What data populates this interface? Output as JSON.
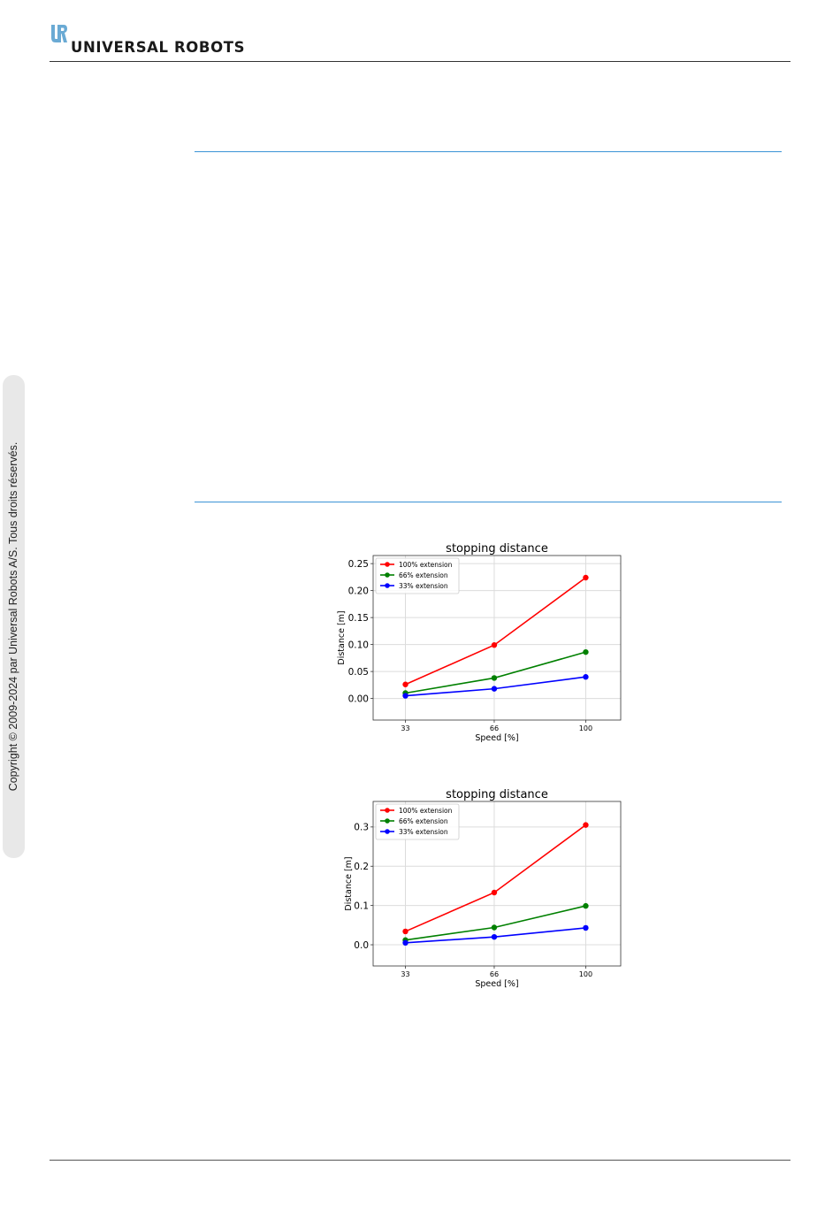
{
  "header": {
    "brand": "UNIVERSAL ROBOTS",
    "logo_icon": "ur-logo-icon",
    "brand_color": "#6aaad4"
  },
  "sidebar": {
    "copyright": "Copyright © 2009-2024 par Universal Robots A/S. Tous droits réservés."
  },
  "chart_data": [
    {
      "type": "line",
      "title": "stopping distance",
      "xlabel": "Speed [%]",
      "ylabel": "Distance [m]",
      "x": [
        33,
        66,
        100
      ],
      "x_ticks": [
        "33",
        "66",
        "100"
      ],
      "y_ticks": [
        "0.00",
        "0.05",
        "0.10",
        "0.15",
        "0.20",
        "0.25"
      ],
      "y_tick_values": [
        0,
        0.05,
        0.1,
        0.15,
        0.2,
        0.25
      ],
      "ylim": [
        -0.04,
        0.265
      ],
      "xlim": [
        21,
        113
      ],
      "grid": true,
      "legend": "top-left",
      "series": [
        {
          "name": "100% extension",
          "color": "#ff0000",
          "values": [
            0.026,
            0.099,
            0.224
          ]
        },
        {
          "name": "66% extension",
          "color": "#008000",
          "values": [
            0.01,
            0.038,
            0.086
          ]
        },
        {
          "name": "33% extension",
          "color": "#0000ff",
          "values": [
            0.005,
            0.018,
            0.04
          ]
        }
      ]
    },
    {
      "type": "line",
      "title": "stopping distance",
      "xlabel": "Speed [%]",
      "ylabel": "Distance [m]",
      "x": [
        33,
        66,
        100
      ],
      "x_ticks": [
        "33",
        "66",
        "100"
      ],
      "y_ticks": [
        "0.0",
        "0.1",
        "0.2",
        "0.3"
      ],
      "y_tick_values": [
        0,
        0.1,
        0.2,
        0.3
      ],
      "ylim": [
        -0.054,
        0.365
      ],
      "xlim": [
        21,
        113
      ],
      "grid": true,
      "legend": "top-left",
      "series": [
        {
          "name": "100% extension",
          "color": "#ff0000",
          "values": [
            0.034,
            0.133,
            0.305
          ]
        },
        {
          "name": "66% extension",
          "color": "#008000",
          "values": [
            0.012,
            0.044,
            0.099
          ]
        },
        {
          "name": "33% extension",
          "color": "#0000ff",
          "values": [
            0.005,
            0.02,
            0.043
          ]
        }
      ]
    }
  ]
}
